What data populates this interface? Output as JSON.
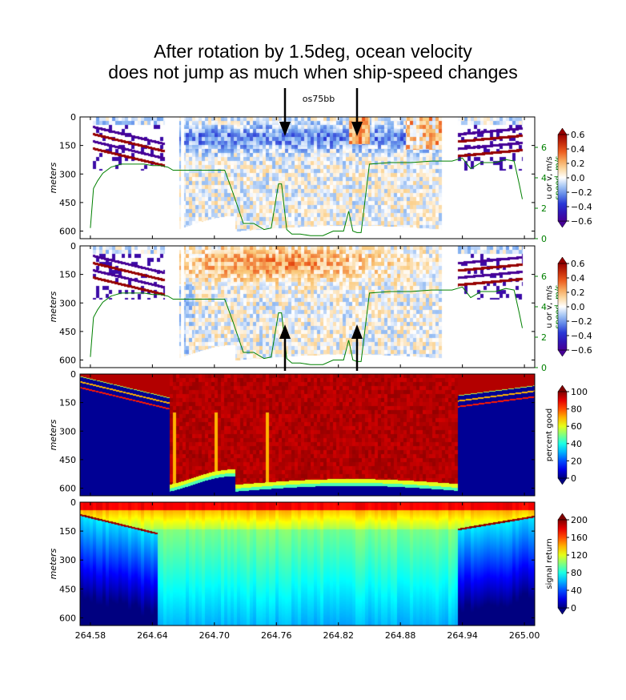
{
  "headline": {
    "line1": "After rotation by 1.5deg, ocean velocity",
    "line2": "does not jump as much when ship-speed changes"
  },
  "chart_data": [
    {
      "type": "heatmap",
      "panel": "u velocity",
      "title": "os75bb",
      "ylabel": "meters",
      "yticks": [
        "0",
        "150",
        "300",
        "450",
        "600"
      ],
      "y_inverted": true,
      "ylim": [
        0,
        640
      ],
      "xlim": [
        264.57,
        265.01
      ],
      "colorbar_label": "u or v, m/s",
      "colorbar_ticks": [
        "0.6",
        "0.4",
        "0.2",
        "0.0",
        "−0.2",
        "−0.4",
        "−0.6"
      ],
      "colorscale": "bwr",
      "secondary_axis": {
        "label": "speed, m/s",
        "ticks": [
          "0",
          "2",
          "4",
          "6"
        ],
        "ylim": [
          0,
          8
        ],
        "color": "#008000"
      },
      "ship_speed": {
        "x": [
          264.58,
          264.583,
          264.587,
          264.592,
          264.6,
          264.61,
          264.62,
          264.632,
          264.64,
          264.648,
          264.655,
          264.66,
          264.672,
          264.7,
          264.71,
          264.718,
          264.728,
          264.738,
          264.748,
          264.755,
          264.762,
          264.765,
          264.77,
          264.775,
          264.783,
          264.793,
          264.805,
          264.815,
          264.825,
          264.83,
          264.834,
          264.838,
          264.842,
          264.85,
          264.87,
          264.89,
          264.91,
          264.93,
          264.935,
          264.94,
          264.948,
          264.958,
          264.972,
          264.982,
          264.99,
          264.995,
          264.998
        ],
        "y": [
          0.7,
          3.3,
          3.8,
          4.3,
          4.7,
          4.9,
          4.9,
          4.9,
          4.8,
          4.8,
          4.7,
          4.5,
          4.5,
          4.5,
          4.5,
          3.0,
          1.0,
          1.0,
          0.6,
          0.7,
          3.6,
          3.6,
          0.6,
          0.3,
          0.3,
          0.2,
          0.2,
          0.5,
          0.5,
          1.8,
          0.5,
          0.4,
          0.4,
          4.9,
          5.0,
          5.0,
          5.1,
          5.1,
          5.2,
          5.3,
          4.6,
          5.0,
          5.0,
          5.2,
          5.1,
          3.6,
          2.6
        ],
        "color": "#008000"
      },
      "annotations": [
        {
          "text": "",
          "x": 264.767,
          "y_from": -32,
          "y_to": 165,
          "arrow": "down"
        },
        {
          "text": "",
          "x": 264.83,
          "y_from": -32,
          "y_to": 165,
          "arrow": "down"
        }
      ]
    },
    {
      "type": "heatmap",
      "panel": "v velocity",
      "ylabel": "meters",
      "yticks": [
        "0",
        "150",
        "300",
        "450",
        "600"
      ],
      "y_inverted": true,
      "ylim": [
        0,
        640
      ],
      "colorbar_label": "u or v, m/s",
      "colorbar_ticks": [
        "0.6",
        "0.4",
        "0.2",
        "0.0",
        "−0.2",
        "−0.4",
        "−0.6"
      ],
      "colorscale": "bwr",
      "secondary_axis": {
        "label": "speed, m/s",
        "ticks": [
          "0",
          "2",
          "4",
          "6"
        ],
        "ylim": [
          0,
          8
        ],
        "color": "#008000"
      },
      "annotations": [
        {
          "text": "",
          "x": 264.767,
          "y_from": 680,
          "y_to": 420,
          "arrow": "up"
        },
        {
          "text": "",
          "x": 264.83,
          "y_from": 680,
          "y_to": 420,
          "arrow": "up"
        }
      ]
    },
    {
      "type": "heatmap",
      "panel": "percent good",
      "ylabel": "meters",
      "yticks": [
        "0",
        "150",
        "300",
        "450",
        "600"
      ],
      "y_inverted": true,
      "ylim": [
        0,
        640
      ],
      "colorbar_label": "percent good",
      "colorbar_ticks": [
        "100",
        "80",
        "60",
        "40",
        "20",
        "0"
      ],
      "colorscale": "jet"
    },
    {
      "type": "heatmap",
      "panel": "signal return",
      "ylabel": "meters",
      "yticks": [
        "0",
        "150",
        "300",
        "450",
        "600"
      ],
      "y_inverted": true,
      "ylim": [
        0,
        640
      ],
      "xticks": [
        "264.58",
        "264.64",
        "264.70",
        "264.76",
        "264.82",
        "264.88",
        "264.94",
        "265.00"
      ],
      "colorbar_label": "signal return",
      "colorbar_ticks": [
        "200",
        "160",
        "120",
        "80",
        "40",
        "0"
      ],
      "colorscale": "jet"
    }
  ]
}
